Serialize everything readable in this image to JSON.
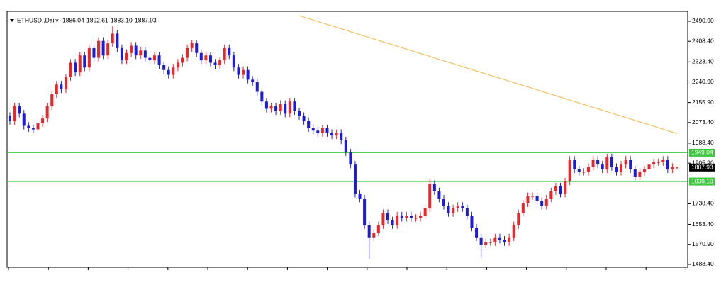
{
  "chart_data": {
    "type": "candlestick",
    "title": "ETHUSD.,Daily",
    "header_prices": [
      "1886.04",
      "1892.61",
      "1883.10",
      "1887.93"
    ],
    "up_color": "#e8262b",
    "down_color": "#1c1cd6",
    "ylim": [
      1476.7,
      2531.8
    ],
    "yticks": [
      {
        "value": 2490.9,
        "label": "2490.90"
      },
      {
        "value": 2408.4,
        "label": "2408.40"
      },
      {
        "value": 2323.4,
        "label": "2323.40"
      },
      {
        "value": 2240.9,
        "label": "2240.90"
      },
      {
        "value": 2155.9,
        "label": "2155.90"
      },
      {
        "value": 2073.4,
        "label": "2073.40"
      },
      {
        "value": 1988.4,
        "label": "1988.40"
      },
      {
        "value": 1905.9,
        "label": "1905.90"
      },
      {
        "value": 1738.4,
        "label": "1738.40"
      },
      {
        "value": 1653.4,
        "label": "1653.40"
      },
      {
        "value": 1570.9,
        "label": "1570.90"
      },
      {
        "value": 1488.4,
        "label": "1488.40"
      }
    ],
    "levels": [
      {
        "value": 1949.04,
        "label": "1949.04",
        "color": "#3cc83c"
      },
      {
        "value": 1830.1,
        "label": "1830.10",
        "color": "#3cc83c"
      }
    ],
    "price_label": {
      "value": 1887.93,
      "label": "1887.93"
    },
    "open": [
      2100,
      2080,
      2140,
      2110,
      2060,
      2050,
      2045,
      2070,
      2090,
      2140,
      2190,
      2230,
      2210,
      2260,
      2320,
      2280,
      2350,
      2300,
      2380,
      2340,
      2410,
      2350,
      2400,
      2440,
      2380,
      2330,
      2360,
      2390,
      2350,
      2370,
      2340,
      2330,
      2350,
      2310,
      2290,
      2270,
      2300,
      2320,
      2340,
      2380,
      2400,
      2360,
      2330,
      2350,
      2320,
      2310,
      2330,
      2380,
      2350,
      2300,
      2270,
      2290,
      2250,
      2240,
      2200,
      2160,
      2130,
      2140,
      2120,
      2150,
      2110,
      2160,
      2120,
      2100,
      2080,
      2050,
      2040,
      2030,
      2050,
      2030,
      2020,
      2030,
      2000,
      1950,
      1900,
      1780,
      1760,
      1650,
      1600,
      1620,
      1650,
      1700,
      1670,
      1650,
      1690,
      1680,
      1690,
      1680,
      1680,
      1690,
      1720,
      1820,
      1790,
      1760,
      1730,
      1700,
      1720,
      1730,
      1720,
      1690,
      1640,
      1600,
      1570,
      1580,
      1580,
      1600,
      1590,
      1580,
      1600,
      1650,
      1700,
      1740,
      1770,
      1770,
      1750,
      1730,
      1760,
      1790,
      1810,
      1780,
      1830,
      1920,
      1880,
      1870,
      1870,
      1890,
      1920,
      1900,
      1880,
      1930,
      1890,
      1870,
      1900,
      1920,
      1880,
      1850,
      1870,
      1880,
      1900,
      1910,
      1910,
      1920,
      1880,
      1886.04
    ],
    "high": [
      2115,
      2155,
      2155,
      2125,
      2075,
      2065,
      2085,
      2105,
      2155,
      2205,
      2245,
      2245,
      2275,
      2335,
      2335,
      2365,
      2365,
      2395,
      2395,
      2425,
      2425,
      2415,
      2470,
      2455,
      2395,
      2375,
      2405,
      2405,
      2385,
      2385,
      2355,
      2365,
      2365,
      2325,
      2305,
      2315,
      2335,
      2355,
      2395,
      2415,
      2415,
      2375,
      2365,
      2365,
      2335,
      2345,
      2395,
      2395,
      2365,
      2315,
      2305,
      2305,
      2265,
      2255,
      2215,
      2175,
      2155,
      2155,
      2165,
      2165,
      2175,
      2175,
      2135,
      2115,
      2095,
      2065,
      2055,
      2065,
      2065,
      2045,
      2045,
      2045,
      2015,
      1965,
      1915,
      1795,
      1775,
      1665,
      1635,
      1665,
      1715,
      1715,
      1685,
      1705,
      1705,
      1705,
      1705,
      1695,
      1705,
      1735,
      1840,
      1835,
      1805,
      1775,
      1745,
      1735,
      1745,
      1745,
      1735,
      1705,
      1655,
      1615,
      1595,
      1595,
      1615,
      1615,
      1605,
      1615,
      1665,
      1715,
      1755,
      1785,
      1785,
      1785,
      1765,
      1775,
      1805,
      1825,
      1825,
      1845,
      1935,
      1935,
      1895,
      1885,
      1905,
      1935,
      1935,
      1915,
      1945,
      1945,
      1905,
      1915,
      1935,
      1935,
      1895,
      1885,
      1895,
      1915,
      1925,
      1925,
      1935,
      1935,
      1905,
      1892.61
    ],
    "low": [
      2065,
      2065,
      2095,
      2045,
      2035,
      2030,
      2030,
      2055,
      2075,
      2125,
      2175,
      2195,
      2195,
      2245,
      2265,
      2265,
      2285,
      2285,
      2325,
      2325,
      2335,
      2335,
      2385,
      2365,
      2315,
      2315,
      2345,
      2335,
      2335,
      2325,
      2315,
      2315,
      2295,
      2275,
      2255,
      2255,
      2285,
      2305,
      2325,
      2365,
      2345,
      2315,
      2315,
      2305,
      2295,
      2295,
      2315,
      2335,
      2285,
      2255,
      2255,
      2235,
      2225,
      2185,
      2145,
      2115,
      2115,
      2105,
      2105,
      2095,
      2095,
      2105,
      2085,
      2065,
      2035,
      2025,
      2015,
      2015,
      2015,
      2005,
      2005,
      1985,
      1935,
      1885,
      1765,
      1745,
      1635,
      1510,
      1585,
      1605,
      1635,
      1655,
      1635,
      1635,
      1665,
      1665,
      1665,
      1665,
      1665,
      1675,
      1705,
      1775,
      1745,
      1715,
      1685,
      1685,
      1705,
      1705,
      1675,
      1625,
      1585,
      1515,
      1555,
      1565,
      1565,
      1575,
      1565,
      1565,
      1585,
      1635,
      1685,
      1725,
      1755,
      1735,
      1715,
      1715,
      1745,
      1775,
      1765,
      1765,
      1815,
      1865,
      1855,
      1855,
      1855,
      1875,
      1885,
      1865,
      1865,
      1875,
      1855,
      1855,
      1885,
      1865,
      1835,
      1835,
      1855,
      1865,
      1885,
      1895,
      1895,
      1865,
      1865,
      1883.1
    ],
    "close": [
      2080,
      2140,
      2110,
      2060,
      2050,
      2045,
      2070,
      2090,
      2140,
      2190,
      2230,
      2210,
      2260,
      2320,
      2280,
      2350,
      2300,
      2380,
      2340,
      2410,
      2350,
      2400,
      2440,
      2380,
      2330,
      2360,
      2390,
      2350,
      2370,
      2340,
      2330,
      2350,
      2310,
      2290,
      2270,
      2300,
      2320,
      2340,
      2380,
      2400,
      2360,
      2330,
      2350,
      2320,
      2310,
      2330,
      2380,
      2350,
      2300,
      2270,
      2290,
      2250,
      2240,
      2200,
      2160,
      2130,
      2140,
      2120,
      2150,
      2110,
      2160,
      2120,
      2100,
      2080,
      2050,
      2040,
      2030,
      2050,
      2030,
      2020,
      2030,
      2000,
      1950,
      1900,
      1780,
      1760,
      1650,
      1600,
      1620,
      1650,
      1700,
      1670,
      1650,
      1690,
      1680,
      1690,
      1680,
      1680,
      1690,
      1720,
      1820,
      1790,
      1760,
      1730,
      1700,
      1720,
      1730,
      1720,
      1690,
      1640,
      1600,
      1570,
      1580,
      1580,
      1600,
      1590,
      1580,
      1600,
      1650,
      1700,
      1740,
      1770,
      1770,
      1750,
      1730,
      1760,
      1790,
      1810,
      1780,
      1830,
      1920,
      1880,
      1870,
      1870,
      1890,
      1920,
      1900,
      1880,
      1930,
      1890,
      1870,
      1900,
      1920,
      1880,
      1850,
      1870,
      1880,
      1900,
      1910,
      1910,
      1920,
      1880,
      1890,
      1887.93
    ],
    "ma": {
      "color": "#f2c264",
      "values": [
        null,
        null,
        null,
        null,
        null,
        null,
        null,
        null,
        null,
        null,
        null,
        null,
        null,
        null,
        null,
        null,
        null,
        null,
        null,
        null,
        null,
        null,
        null,
        null,
        null,
        null,
        null,
        null,
        null,
        null,
        null,
        null,
        null,
        null,
        null,
        null,
        null,
        null,
        null,
        null,
        null,
        null,
        null,
        null,
        null,
        null,
        null,
        null,
        null,
        null,
        null,
        null,
        null,
        null,
        null,
        null,
        null,
        null,
        null,
        null,
        null,
        null,
        2514,
        2508,
        2502,
        2496,
        2490,
        2484,
        2478,
        2472,
        2466,
        2460,
        2454,
        2448,
        2442,
        2436,
        2430,
        2424,
        2418,
        2412,
        2406,
        2400,
        2394,
        2388,
        2382,
        2376,
        2370,
        2364,
        2358,
        2352,
        2346,
        2340,
        2334,
        2328,
        2322,
        2316,
        2310,
        2304,
        2298,
        2292,
        2286,
        2280,
        2274,
        2268,
        2262,
        2256,
        2250,
        2244,
        2238,
        2232,
        2226,
        2220,
        2214,
        2208,
        2202,
        2196,
        2190,
        2184,
        2178,
        2172,
        2166,
        2160,
        2154,
        2148,
        2142,
        2136,
        2130,
        2124,
        2118,
        2112,
        2106,
        2100,
        2094,
        2088,
        2082,
        2076,
        2070,
        2064,
        2058,
        2052,
        2046,
        2040,
        2034,
        2028
      ]
    }
  }
}
